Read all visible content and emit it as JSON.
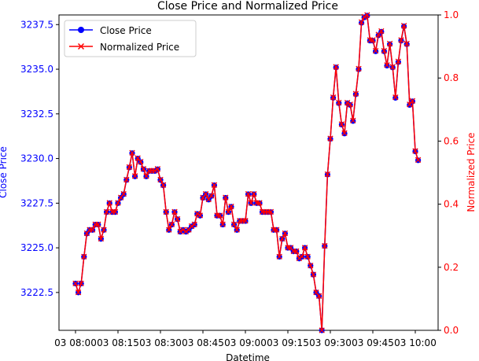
{
  "chart_data": {
    "type": "line",
    "title": "Close Price and Normalized Price",
    "xlabel": "Datetime",
    "ylabel_left": "Close Price",
    "ylabel_right": "Normalized Price",
    "x_tick_labels": [
      "03 08:00",
      "03 08:15",
      "03 08:30",
      "03 08:45",
      "03 09:00",
      "03 09:15",
      "03 09:30",
      "03 09:45",
      "03 10:00"
    ],
    "x_tick_minutes": [
      0,
      15,
      30,
      45,
      60,
      75,
      90,
      105,
      120
    ],
    "y_left_ticks": [
      3222.5,
      3225.0,
      3227.5,
      3230.0,
      3232.5,
      3235.0,
      3237.5
    ],
    "y_left_ticks_text": [
      "3222.5",
      "3225.0",
      "3227.5",
      "3230.0",
      "3232.5",
      "3235.0",
      "3237.5"
    ],
    "y_right_ticks": [
      0.0,
      0.2,
      0.4,
      0.6,
      0.8,
      1.0
    ],
    "y_right_ticks_text": [
      "0.0",
      "0.2",
      "0.4",
      "0.6",
      "0.8",
      "1.0"
    ],
    "y_left_range": [
      3220.38,
      3238.04
    ],
    "y_right_range": [
      0.0,
      1.0
    ],
    "legend_position": "top-left",
    "colors": {
      "close": "#0000ff",
      "normalized": "#ff0000",
      "left_axis": "#0000ff",
      "right_axis": "#ff0000"
    },
    "series": [
      {
        "name": "Close Price",
        "axis": "left",
        "marker": "circle",
        "values": [
          3223.0,
          3222.5,
          3223.0,
          3224.5,
          3225.8,
          3226.0,
          3226.0,
          3226.3,
          3226.3,
          3225.5,
          3226.0,
          3227.0,
          3227.5,
          3227.0,
          3227.0,
          3227.5,
          3227.8,
          3228.0,
          3228.8,
          3229.5,
          3230.3,
          3229.0,
          3230.0,
          3229.8,
          3229.4,
          3229.0,
          3229.3,
          3229.3,
          3229.3,
          3229.4,
          3228.8,
          3228.5,
          3227.0,
          3226.0,
          3226.3,
          3227.0,
          3226.6,
          3225.9,
          3226.0,
          3225.9,
          3226.0,
          3226.2,
          3226.3,
          3226.9,
          3226.8,
          3227.8,
          3228.0,
          3227.7,
          3227.9,
          3228.5,
          3226.8,
          3226.8,
          3226.3,
          3227.8,
          3227.0,
          3227.3,
          3226.3,
          3226.0,
          3226.5,
          3226.5,
          3226.5,
          3228.0,
          3227.5,
          3228.0,
          3227.5,
          3227.5,
          3227.0,
          3227.0,
          3227.0,
          3227.0,
          3226.0,
          3226.0,
          3224.5,
          3225.5,
          3225.8,
          3225.0,
          3225.0,
          3224.8,
          3224.8,
          3224.4,
          3224.5,
          3225.0,
          3224.5,
          3224.0,
          3223.5,
          3222.5,
          3222.3,
          3220.38,
          3225.1,
          3229.1,
          3231.1,
          3233.4,
          3235.1,
          3233.1,
          3231.9,
          3231.4,
          3233.1,
          3233.0,
          3232.1,
          3233.6,
          3235.0,
          3237.6,
          3237.9,
          3238.0,
          3236.6,
          3236.6,
          3236.0,
          3236.9,
          3237.1,
          3236.0,
          3235.2,
          3236.4,
          3235.1,
          3233.4,
          3235.4,
          3236.6,
          3237.4,
          3236.4,
          3233.0,
          3233.2,
          3230.4,
          3229.9
        ]
      },
      {
        "name": "Normalized Price",
        "axis": "right",
        "marker": "x",
        "values_note": ""
      }
    ]
  }
}
